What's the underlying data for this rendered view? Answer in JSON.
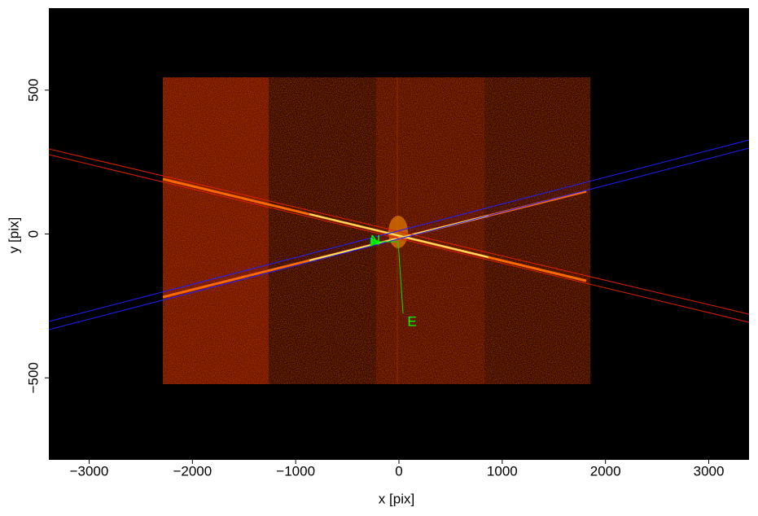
{
  "chart_data": {
    "type": "image",
    "x_label": "x [pix]",
    "y_label": "y [pix]",
    "xlim": [
      -3390,
      3390
    ],
    "ylim": [
      -785,
      785
    ],
    "xticks": [
      {
        "value": -3000,
        "label": "−3000"
      },
      {
        "value": -2000,
        "label": "−2000"
      },
      {
        "value": -1000,
        "label": "−1000"
      },
      0,
      1000,
      2000,
      3000
    ],
    "yticks": [
      {
        "value": -500,
        "label": "−500"
      },
      0,
      500
    ],
    "annotations": [
      "N",
      "E"
    ]
  }
}
